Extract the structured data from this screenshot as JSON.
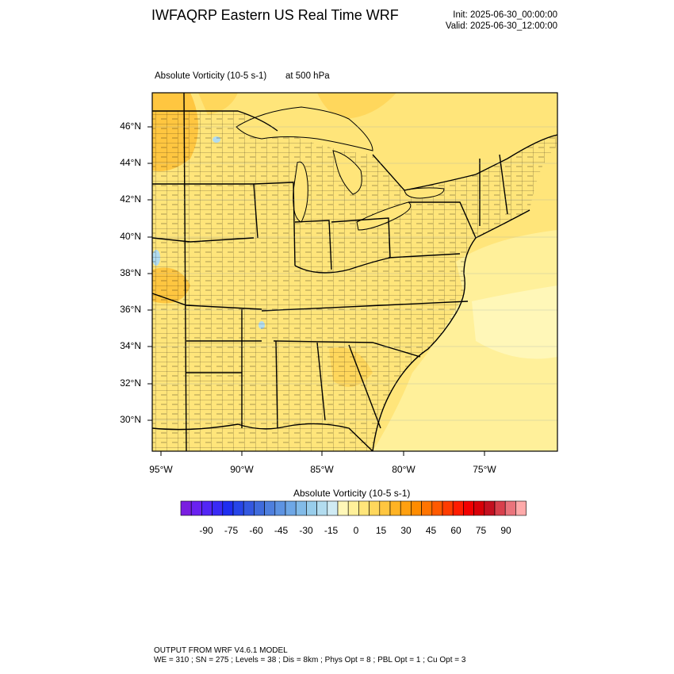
{
  "header": {
    "title": "IWFAQRP Eastern US Real Time WRF",
    "init": "Init: 2025-06-30_00:00:00",
    "valid": "Valid: 2025-06-30_12:00:00"
  },
  "plot": {
    "field_label": "Absolute Vorticity   (10-5 s-1)",
    "level_label": "at   500 hPa",
    "lat_labels": [
      "46°N",
      "44°N",
      "42°N",
      "40°N",
      "38°N",
      "36°N",
      "34°N",
      "32°N",
      "30°N"
    ],
    "lon_labels": [
      "95°W",
      "90°W",
      "85°W",
      "80°W",
      "75°W"
    ]
  },
  "colorbar": {
    "title": "Absolute Vorticity  (10-5 s-1)",
    "labels": [
      "-90",
      "-75",
      "-60",
      "-45",
      "-30",
      "-15",
      "0",
      "15",
      "30",
      "45",
      "60",
      "75",
      "90"
    ],
    "colors": [
      "#7a1fe0",
      "#6a22f0",
      "#5326f5",
      "#3a2bf5",
      "#1f2ef0",
      "#2745e8",
      "#3358e0",
      "#3f6bdc",
      "#4e7fde",
      "#5d93e2",
      "#6ea7e6",
      "#82bbe8",
      "#98cdeb",
      "#b2dcef",
      "#d0ebf4",
      "#fff7b8",
      "#fff09a",
      "#ffe57a",
      "#ffd75c",
      "#ffc640",
      "#ffb324",
      "#ffa010",
      "#ff8c00",
      "#ff7400",
      "#ff5a00",
      "#ff3c00",
      "#ff1c00",
      "#f20000",
      "#d80008",
      "#c41020",
      "#d8404c",
      "#ea747c",
      "#ffaaaa"
    ]
  },
  "footer": {
    "line1": "OUTPUT FROM WRF V4.6.1 MODEL",
    "line2": "WE = 310 ; SN = 275 ; Levels = 38 ; Dis = 8km ; Phys Opt = 8 ; PBL Opt = 1 ; Cu Opt = 3"
  }
}
